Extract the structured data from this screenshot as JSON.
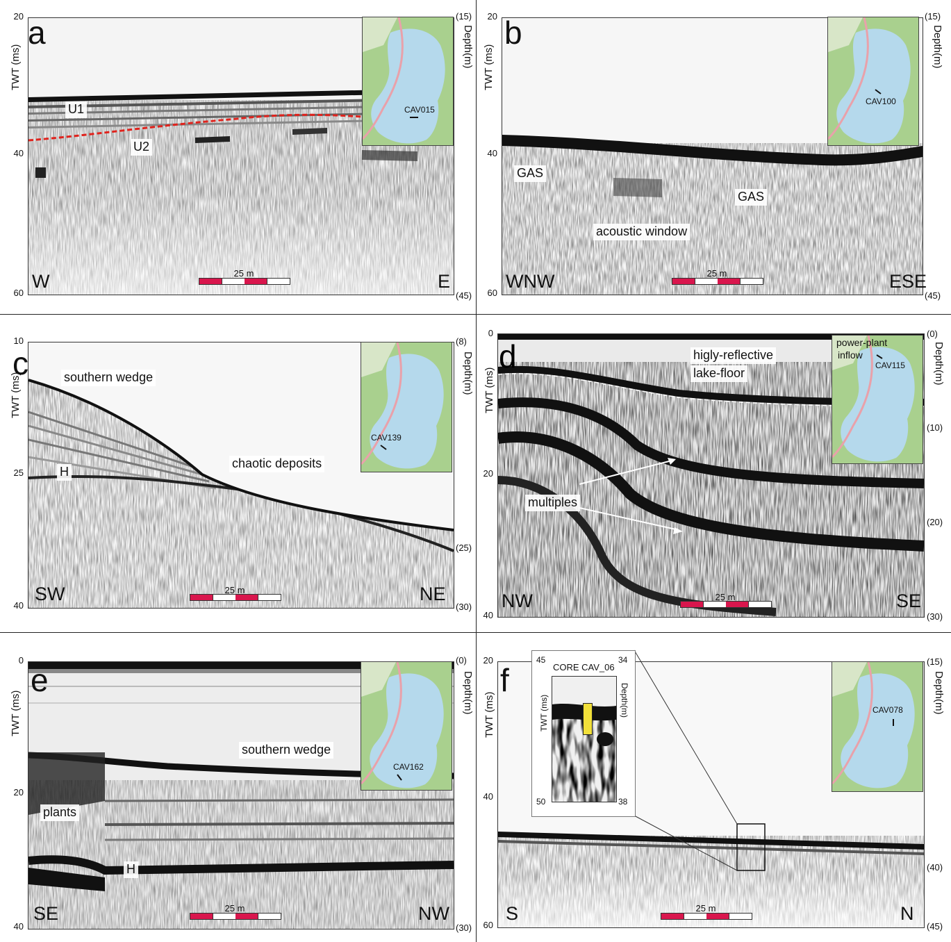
{
  "figure": {
    "panels": [
      {
        "id": "a",
        "letter": "a",
        "left_axis": "TWT (ms)",
        "right_axis": "Depth(m)",
        "left_ticks": [
          "20",
          "40",
          "60"
        ],
        "right_ticks": [
          "(15)",
          "(45)"
        ],
        "dir_left": "W",
        "dir_right": "E",
        "scale_label": "25 m",
        "station": "CAV015",
        "labels": [
          "U1",
          "U2"
        ]
      },
      {
        "id": "b",
        "letter": "b",
        "left_axis": "TWT (ms)",
        "right_axis": "Depth(m)",
        "left_ticks": [
          "20",
          "40",
          "60"
        ],
        "right_ticks": [
          "(15)",
          "(45)"
        ],
        "dir_left": "WNW",
        "dir_right": "ESE",
        "scale_label": "25 m",
        "station": "CAV100",
        "labels": [
          "GAS",
          "GAS",
          "acoustic window"
        ]
      },
      {
        "id": "c",
        "letter": "c",
        "left_axis": "TWT (ms)",
        "right_axis": "Depth(m)",
        "left_ticks": [
          "10",
          "25",
          "40"
        ],
        "right_ticks": [
          "(8)",
          "(25)",
          "(30)"
        ],
        "dir_left": "SW",
        "dir_right": "NE",
        "scale_label": "25 m",
        "station": "CAV139",
        "labels": [
          "southern wedge",
          "H",
          "chaotic deposits"
        ]
      },
      {
        "id": "d",
        "letter": "d",
        "left_axis": "TWT (ms)",
        "right_axis": "Depth(m)",
        "left_ticks": [
          "0",
          "20",
          "40"
        ],
        "right_ticks": [
          "(0)",
          "(10)",
          "(20)",
          "(30)"
        ],
        "dir_left": "NW",
        "dir_right": "SE",
        "scale_label": "25 m",
        "station": "CAV115",
        "labels": [
          "higly-reflective",
          "lake-floor",
          "multiples",
          "power-plant",
          "inflow"
        ]
      },
      {
        "id": "e",
        "letter": "e",
        "left_axis": "TWT (ms)",
        "right_axis": "Depth(m)",
        "left_ticks": [
          "0",
          "20",
          "40"
        ],
        "right_ticks": [
          "(0)",
          "(30)"
        ],
        "dir_left": "SE",
        "dir_right": "NW",
        "scale_label": "25 m",
        "station": "CAV162",
        "labels": [
          "southern wedge",
          "plants",
          "H"
        ]
      },
      {
        "id": "f",
        "letter": "f",
        "left_axis": "TWT (ms)",
        "right_axis": "Depth(m)",
        "left_ticks": [
          "20",
          "40",
          "60"
        ],
        "right_ticks": [
          "(15)",
          "(40)",
          "(45)"
        ],
        "dir_left": "S",
        "dir_right": "N",
        "scale_label": "25 m",
        "station": "CAV078",
        "labels": [],
        "core_inset": {
          "title": "CORE CAV_06",
          "left_axis": "TWT (ms)",
          "right_axis": "Depth(m)",
          "left_ticks": [
            "45",
            "50"
          ],
          "right_ticks": [
            "34",
            "38"
          ]
        }
      }
    ],
    "colors": {
      "scale_red": "#d9164d",
      "core_yellow": "#f2e03a",
      "horizon_red": "#e0221c",
      "map_lake": "#b5d9ec",
      "map_land": "#a9d08e"
    }
  }
}
